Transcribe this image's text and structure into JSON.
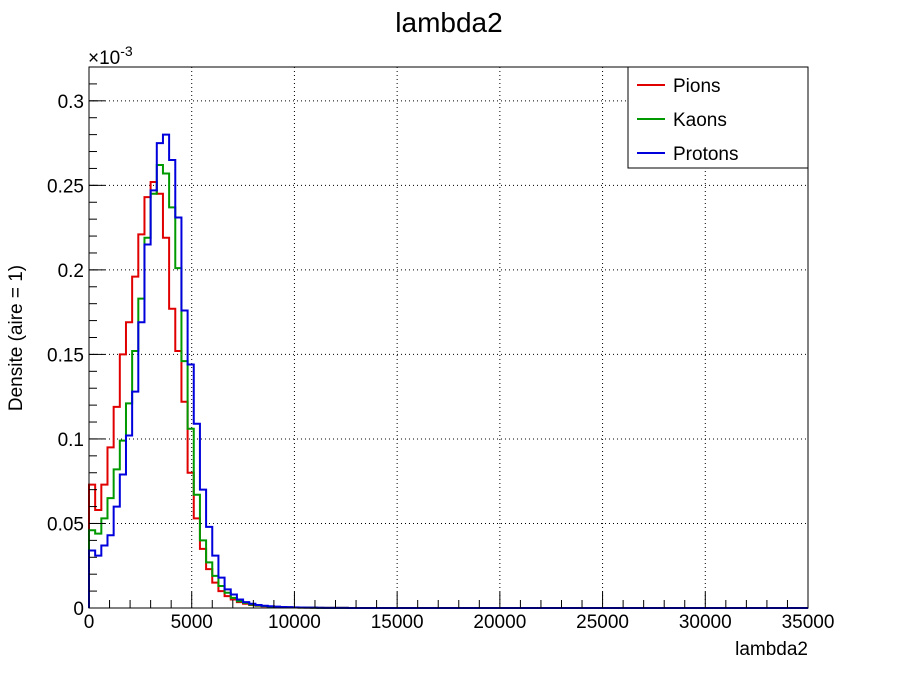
{
  "chart_data": {
    "type": "histogram-step",
    "title": "lambda2",
    "xlabel": "lambda2",
    "ylabel": "Densite (aire = 1)",
    "y_exponent_label": "×10",
    "y_exponent_power": "-3",
    "xlim": [
      0,
      35000
    ],
    "ylim": [
      0,
      0.32
    ],
    "grid": true,
    "legend_position": "top-right",
    "bin_width": 300,
    "x_ticks": [
      0,
      5000,
      10000,
      15000,
      20000,
      25000,
      30000,
      35000
    ],
    "x_tick_labels": [
      "0",
      "5000",
      "10000",
      "15000",
      "20000",
      "25000",
      "30000",
      "35000"
    ],
    "y_ticks": [
      0,
      0.05,
      0.1,
      0.15,
      0.2,
      0.25,
      0.3
    ],
    "y_tick_labels": [
      "0",
      "0.05",
      "0.1",
      "0.15",
      "0.2",
      "0.25",
      "0.3"
    ],
    "series": [
      {
        "name": "Pions",
        "color": "#e00000",
        "values": [
          0.073,
          0.058,
          0.073,
          0.095,
          0.119,
          0.15,
          0.169,
          0.196,
          0.221,
          0.243,
          0.252,
          0.245,
          0.219,
          0.177,
          0.152,
          0.122,
          0.08,
          0.053,
          0.035,
          0.023,
          0.015,
          0.01,
          0.007,
          0.005,
          0.0035,
          0.0025,
          0.0018,
          0.0013,
          0.001,
          0.0008,
          0.0006,
          0.0005,
          0.0004,
          0.0003,
          0.00025,
          0.0002,
          0.00015,
          0.0001,
          0.0001,
          8e-05,
          6e-05,
          5e-05
        ]
      },
      {
        "name": "Kaons",
        "color": "#009900",
        "values": [
          0.046,
          0.044,
          0.053,
          0.065,
          0.082,
          0.099,
          0.121,
          0.152,
          0.183,
          0.219,
          0.245,
          0.262,
          0.257,
          0.237,
          0.201,
          0.146,
          0.106,
          0.067,
          0.04,
          0.027,
          0.019,
          0.013,
          0.009,
          0.006,
          0.004,
          0.003,
          0.002,
          0.0015,
          0.0012,
          0.0009,
          0.0007,
          0.0005,
          0.0004,
          0.0003,
          0.00025,
          0.0002,
          0.00015,
          0.0001,
          0.0001,
          8e-05,
          6e-05,
          5e-05
        ]
      },
      {
        "name": "Protons",
        "color": "#0000dd",
        "values": [
          0.034,
          0.031,
          0.037,
          0.043,
          0.06,
          0.079,
          0.102,
          0.128,
          0.169,
          0.215,
          0.247,
          0.275,
          0.28,
          0.265,
          0.231,
          0.176,
          0.144,
          0.109,
          0.07,
          0.048,
          0.031,
          0.018,
          0.011,
          0.008,
          0.005,
          0.0035,
          0.0025,
          0.0018,
          0.0013,
          0.001,
          0.0008,
          0.0006,
          0.0005,
          0.0004,
          0.0003,
          0.00025,
          0.0002,
          0.00015,
          0.0001,
          0.0001,
          8e-05,
          6e-05
        ]
      }
    ]
  }
}
